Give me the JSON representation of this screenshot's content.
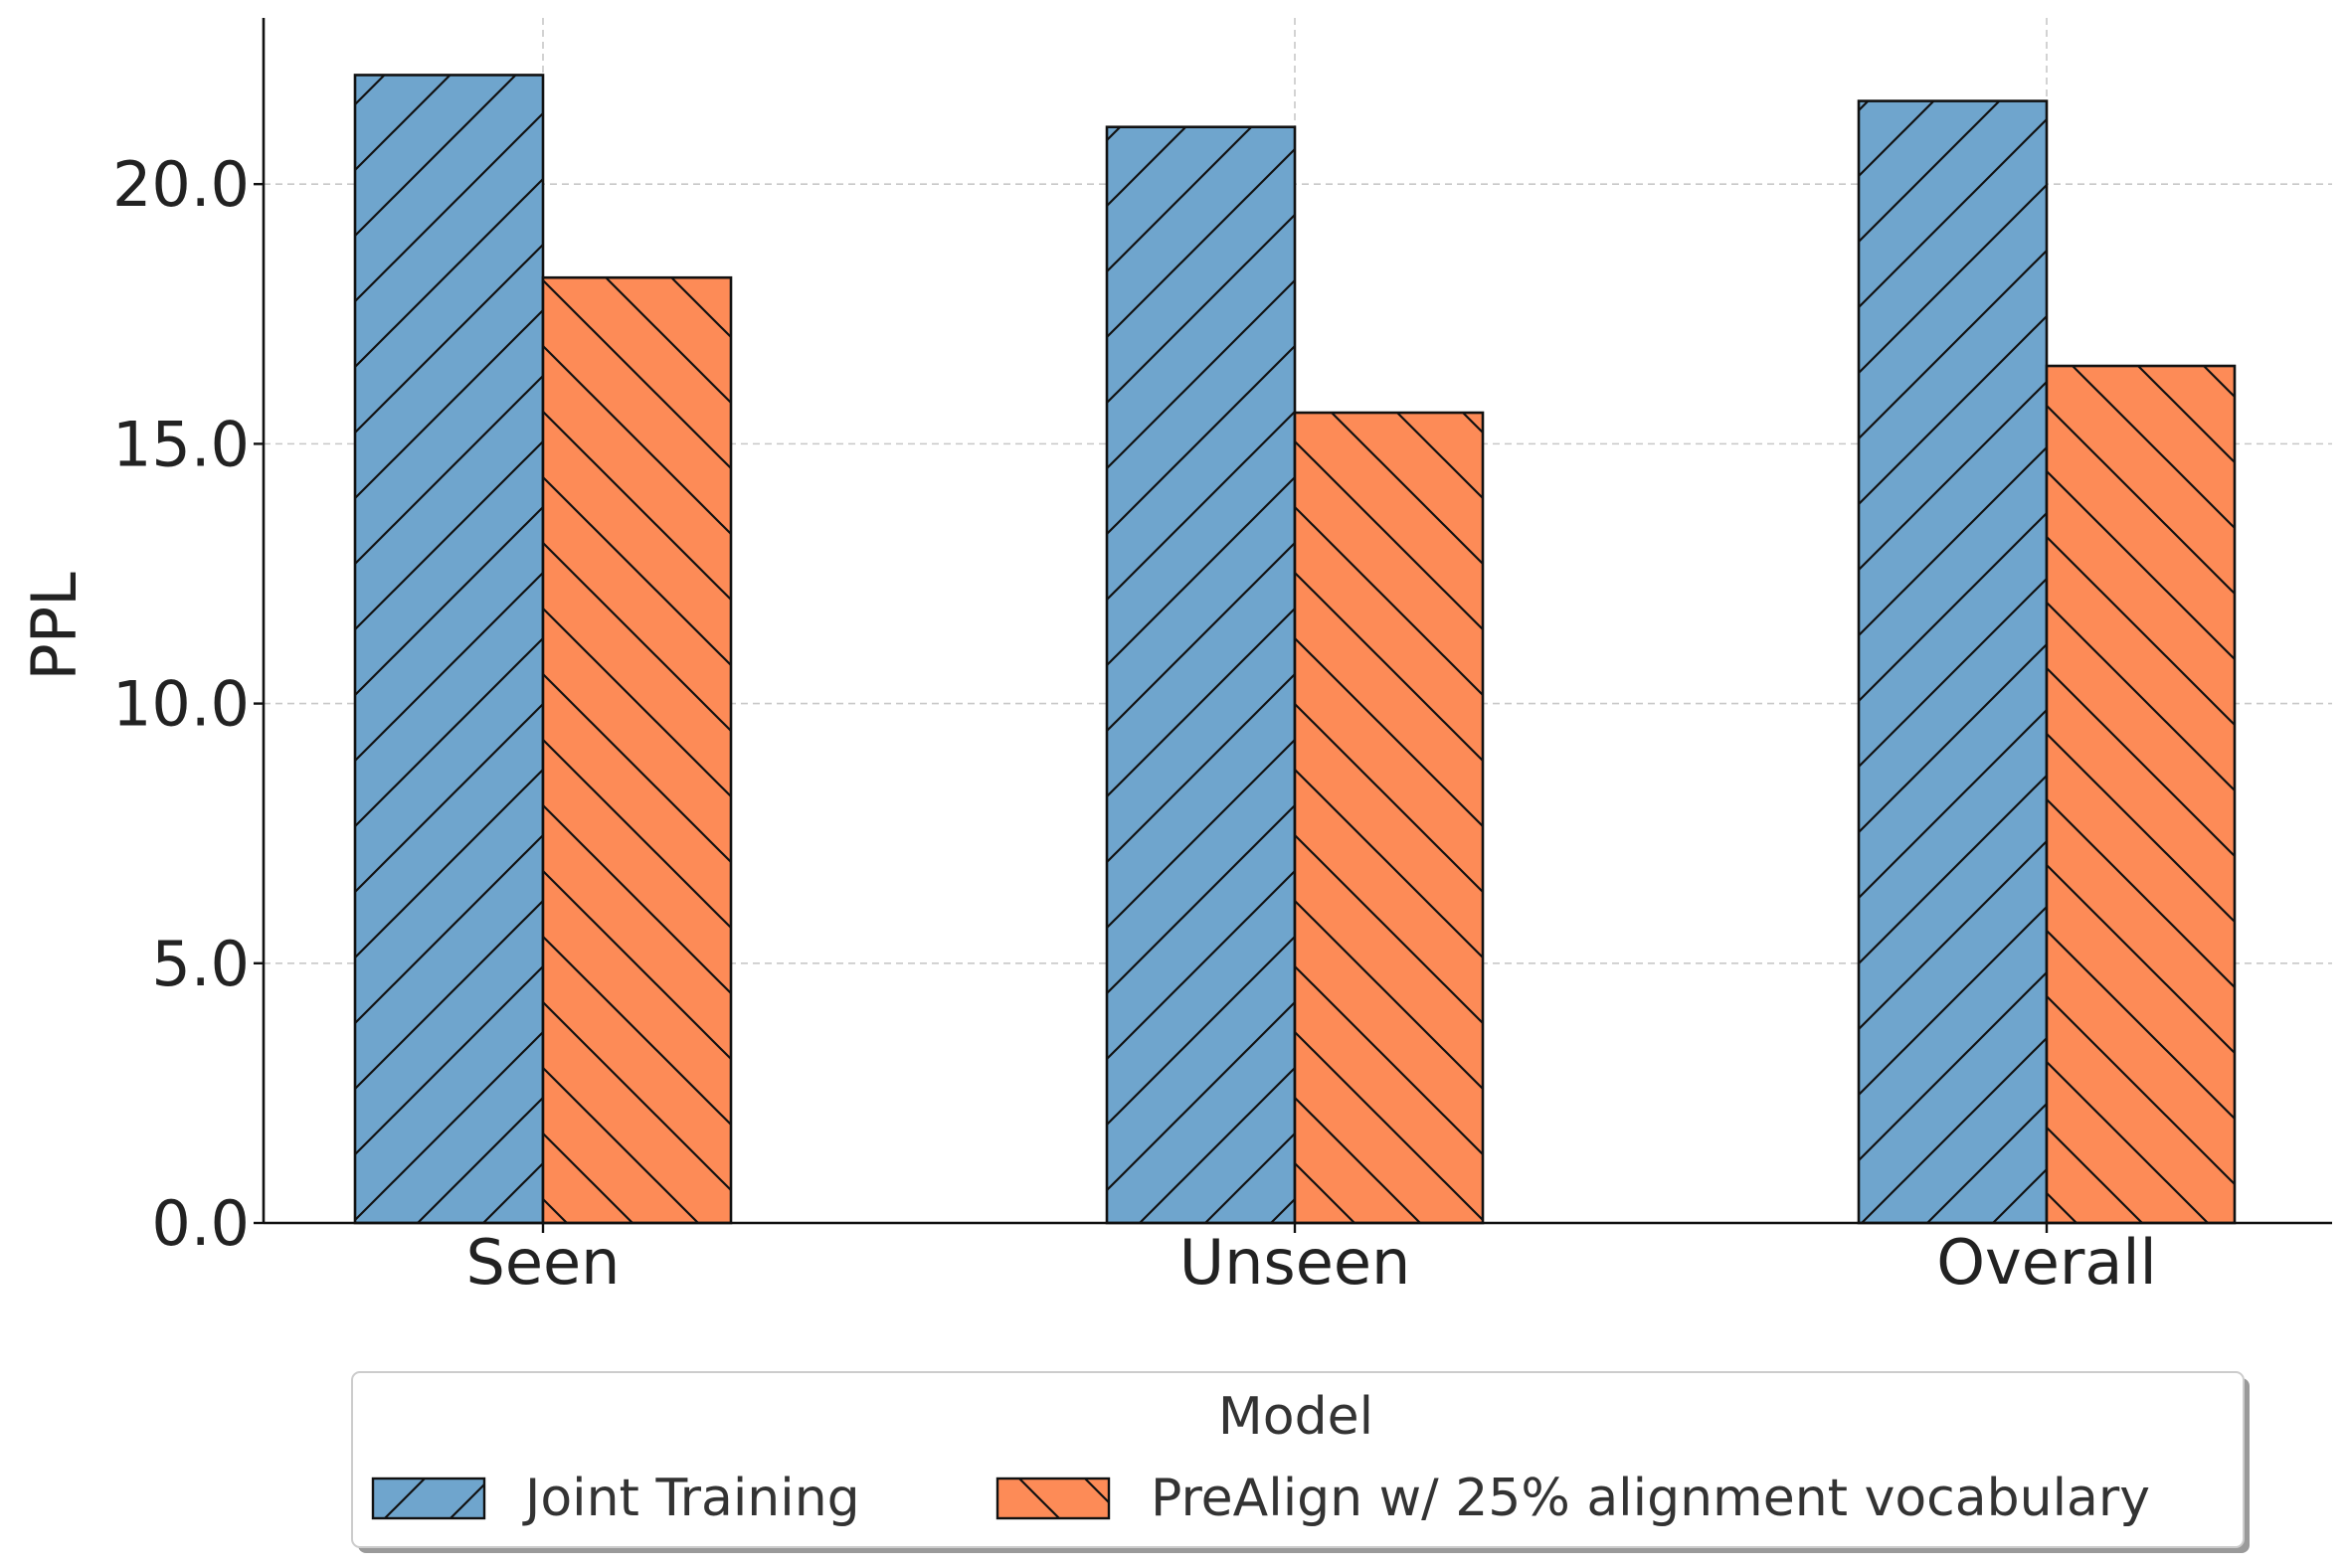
{
  "chart_data": {
    "type": "bar",
    "categories": [
      "Seen",
      "Unseen",
      "Overall"
    ],
    "series": [
      {
        "name": "Joint Training",
        "values": [
          22.1,
          21.1,
          21.6
        ],
        "color": "#6fa5cd",
        "hatch": "forward-diagonal"
      },
      {
        "name": "PreAlign w/ 25% alignment vocabulary",
        "values": [
          18.2,
          15.6,
          16.5
        ],
        "color": "#fd8b57",
        "hatch": "backward-diagonal"
      }
    ],
    "title": "",
    "xlabel": "",
    "ylabel": "PPL",
    "ylim": [
      0,
      23.2
    ],
    "yticks": [
      0.0,
      5.0,
      10.0,
      15.0,
      20.0
    ],
    "ytick_labels": [
      "0.0",
      "5.0",
      "10.0",
      "15.0",
      "20.0"
    ],
    "grid": true,
    "legend": {
      "title": "Model",
      "placement": "bottom-center, below axes"
    }
  }
}
